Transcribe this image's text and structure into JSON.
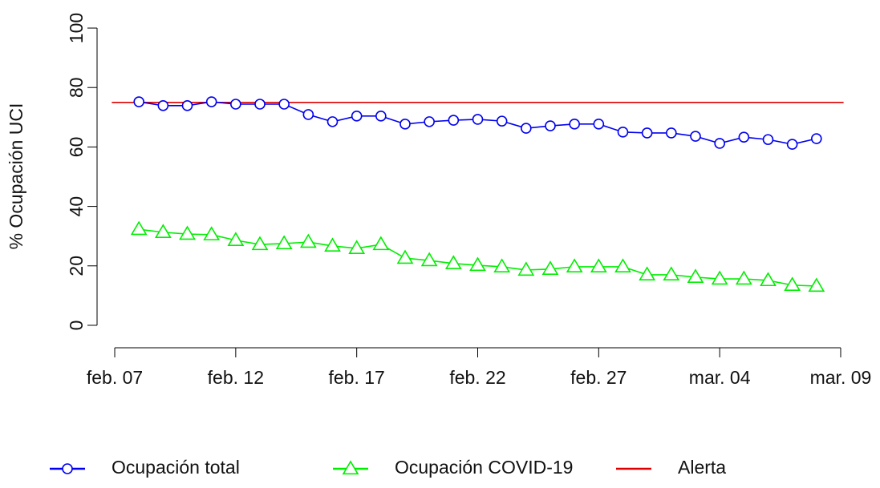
{
  "chart_data": {
    "type": "line",
    "y_label": "% Ocupación UCI",
    "x": [
      1,
      2,
      3,
      4,
      5,
      6,
      7,
      8,
      9,
      10,
      11,
      12,
      13,
      14,
      15,
      16,
      17,
      18,
      19,
      20,
      21,
      22,
      23,
      24,
      25,
      26,
      27,
      28,
      29
    ],
    "xlim": [
      -0.12,
      30.12
    ],
    "xticks": [
      {
        "value": 0,
        "label": "feb. 07"
      },
      {
        "value": 5,
        "label": "feb. 12"
      },
      {
        "value": 10,
        "label": "feb. 17"
      },
      {
        "value": 15,
        "label": "feb. 22"
      },
      {
        "value": 20,
        "label": "feb. 27"
      },
      {
        "value": 25,
        "label": "mar. 04"
      },
      {
        "value": 30,
        "label": "mar. 09"
      }
    ],
    "ylim": [
      -4,
      104
    ],
    "yticks": [
      0,
      20,
      40,
      60,
      80,
      100
    ],
    "series": [
      {
        "name": "Ocupación total",
        "color": "#0000ee",
        "marker": "circle",
        "values": [
          75.2,
          73.9,
          73.9,
          75.2,
          74.4,
          74.4,
          74.4,
          70.9,
          68.5,
          70.4,
          70.4,
          67.7,
          68.5,
          69.0,
          69.3,
          68.7,
          66.3,
          67.1,
          67.7,
          67.7,
          65.0,
          64.7,
          64.7,
          63.6,
          61.2,
          63.3,
          62.5,
          60.9,
          62.8
        ]
      },
      {
        "name": "Ocupación COVID-19",
        "color": "#00ee00",
        "marker": "triangle",
        "values": [
          32.3,
          31.3,
          30.7,
          30.5,
          28.6,
          27.2,
          27.5,
          28.0,
          26.7,
          25.9,
          27.2,
          22.6,
          21.8,
          20.8,
          20.2,
          19.7,
          18.6,
          18.9,
          19.7,
          19.7,
          19.7,
          17.0,
          17.0,
          16.2,
          15.6,
          15.6,
          15.1,
          13.5,
          13.2
        ]
      }
    ],
    "reference_lines": [
      {
        "name": "Alerta",
        "value": 75,
        "color": "#dd0000"
      }
    ]
  }
}
